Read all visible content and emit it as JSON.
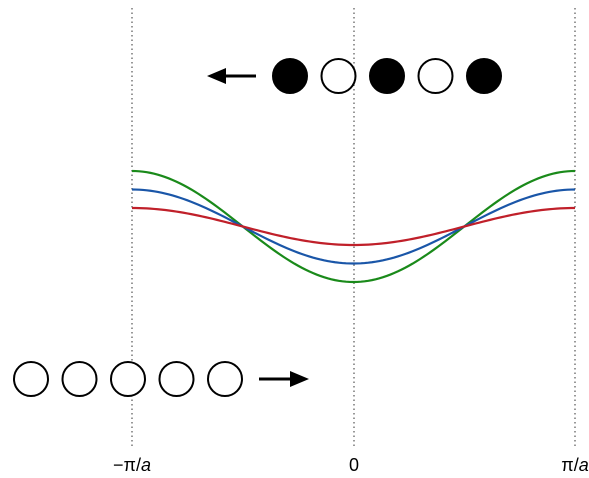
{
  "axis": {
    "left_label_prefix": "−π/",
    "left_label_var": "a",
    "center_label": "0",
    "right_label_prefix": "π/",
    "right_label_var": "a"
  },
  "curves": [
    {
      "color": "#1a8a1a",
      "amplitude": 3
    },
    {
      "color": "#1a56a8",
      "amplitude": 2
    },
    {
      "color": "#c0202a",
      "amplitude": 1
    }
  ],
  "top_chain": {
    "arrow_direction": "left",
    "atoms": [
      "filled",
      "hollow",
      "filled",
      "hollow",
      "filled"
    ]
  },
  "bottom_chain": {
    "arrow_direction": "right",
    "atoms": [
      "hollow",
      "hollow",
      "hollow",
      "hollow",
      "hollow"
    ]
  },
  "icons": {
    "left_arrow": "arrow-left-icon",
    "right_arrow": "arrow-right-icon"
  }
}
